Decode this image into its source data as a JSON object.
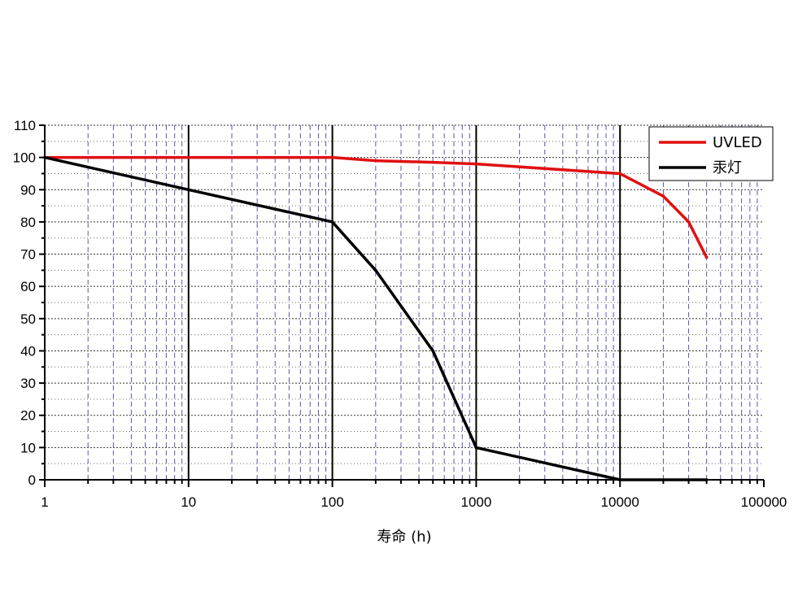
{
  "chart_data": {
    "type": "line",
    "xscale": "log",
    "xlim": [
      1,
      100000
    ],
    "ylim": [
      0,
      110
    ],
    "xlabel": "寿命 (h)",
    "ylabel": "",
    "x_ticks": [
      {
        "value": 1,
        "label": "1"
      },
      {
        "value": 10,
        "label": "10"
      },
      {
        "value": 100,
        "label": "100"
      },
      {
        "value": 1000,
        "label": "1000"
      },
      {
        "value": 10000,
        "label": "10000"
      },
      {
        "value": 100000,
        "label": "100000"
      }
    ],
    "y_ticks": [
      {
        "value": 0,
        "label": "0"
      },
      {
        "value": 10,
        "label": "10"
      },
      {
        "value": 20,
        "label": "20"
      },
      {
        "value": 30,
        "label": "30"
      },
      {
        "value": 40,
        "label": "40"
      },
      {
        "value": 50,
        "label": "50"
      },
      {
        "value": 60,
        "label": "60"
      },
      {
        "value": 70,
        "label": "70"
      },
      {
        "value": 80,
        "label": "80"
      },
      {
        "value": 90,
        "label": "90"
      },
      {
        "value": 100,
        "label": "100"
      },
      {
        "value": 110,
        "label": "110"
      }
    ],
    "grid": true,
    "legend_position": "top-right",
    "series": [
      {
        "name": "UVLED",
        "color": "#e01010",
        "x": [
          1,
          10,
          100,
          200,
          500,
          1000,
          10000,
          20000,
          30000,
          40000
        ],
        "y": [
          100,
          100,
          100,
          99,
          98.5,
          98,
          95,
          88,
          80,
          69
        ]
      },
      {
        "name": "汞灯",
        "color": "#000000",
        "x": [
          1,
          10,
          100,
          200,
          500,
          1000,
          10000,
          40000
        ],
        "y": [
          100,
          90,
          80,
          65,
          40,
          10,
          0,
          0
        ]
      }
    ]
  }
}
